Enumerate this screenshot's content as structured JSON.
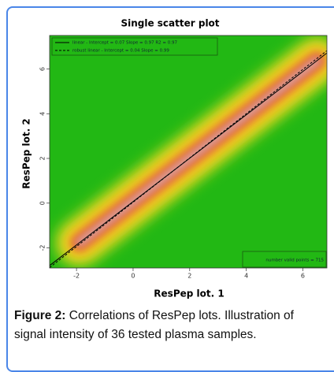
{
  "chart_data": {
    "type": "scatter",
    "title": "Single scatter plot",
    "xlabel": "ResPep lot. 1",
    "ylabel": "ResPep lot. 2",
    "xlim": [
      -2.95,
      6.85
    ],
    "ylim": [
      -2.9,
      7.5
    ],
    "xticks": [
      -2,
      0,
      2,
      4,
      6
    ],
    "yticks": [
      -2,
      0,
      2,
      4,
      6
    ],
    "series": [
      {
        "name": "linear - Intercept = 0.07   Slope = 0.97   R2 = 0.97",
        "intercept": 0.07,
        "slope": 0.97,
        "color": "#000000",
        "dash": "solid"
      },
      {
        "name": "robust linear - Intercept = 0.04   Slope = 0.99",
        "intercept": 0.04,
        "slope": 0.99,
        "color": "#000000",
        "dash": "dashed"
      }
    ],
    "note": "number valid points = 715",
    "background": "#22b814"
  },
  "caption": {
    "label": "Figure 2:",
    "text": "Correlations of ResPep lots. Illustration of signal intensity of 36 tested plasma samples."
  }
}
